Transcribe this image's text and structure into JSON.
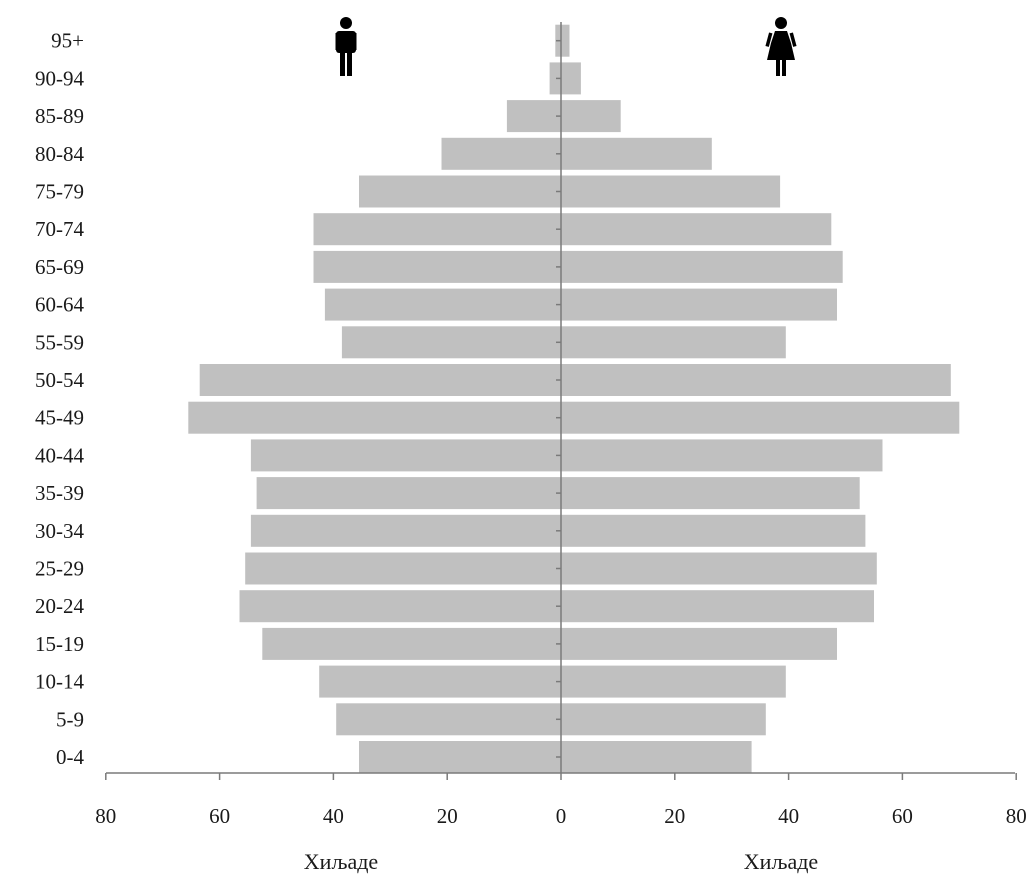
{
  "chart_data": {
    "type": "bar",
    "orientation": "horizontal",
    "layout": "population-pyramid",
    "categories": [
      "0-4",
      "5-9",
      "10-14",
      "15-19",
      "20-24",
      "25-29",
      "30-34",
      "35-39",
      "40-44",
      "45-49",
      "50-54",
      "55-59",
      "60-64",
      "65-69",
      "70-74",
      "75-79",
      "80-84",
      "85-89",
      "90-94",
      "95+"
    ],
    "series": [
      {
        "values": [
          35.5,
          39.5,
          42.5,
          52.5,
          56.5,
          55.5,
          54.5,
          53.5,
          54.5,
          65.5,
          63.5,
          38.5,
          41.5,
          43.5,
          43.5,
          35.5,
          21.0,
          9.5,
          2.0,
          1.0
        ],
        "side": "left",
        "icon": "male-icon",
        "color": "#c0c0c0"
      },
      {
        "values": [
          33.5,
          36.0,
          39.5,
          48.5,
          55.0,
          55.5,
          53.5,
          52.5,
          56.5,
          70.0,
          68.5,
          39.5,
          48.5,
          49.5,
          47.5,
          38.5,
          26.5,
          10.5,
          3.5,
          1.5
        ],
        "side": "right",
        "icon": "female-icon",
        "color": "#c0c0c0"
      }
    ],
    "x_ticks_left": [
      "80",
      "60",
      "40",
      "20",
      "0"
    ],
    "x_ticks_right": [
      "20",
      "40",
      "60",
      "80"
    ],
    "xlabel_left": "Хиљаде",
    "xlabel_right": "Хиљаде",
    "xlim": [
      0,
      80
    ],
    "grid": false,
    "legend": "icons above each side"
  }
}
